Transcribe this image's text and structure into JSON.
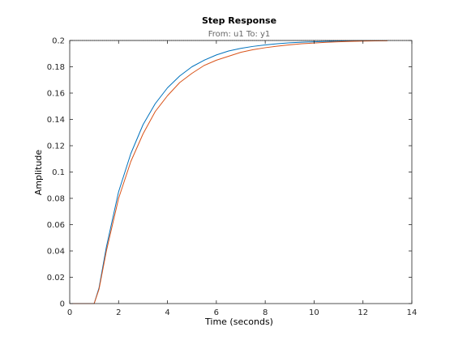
{
  "chart_data": {
    "type": "line",
    "title": "Step Response",
    "subtitle": "From: u1  To: y1",
    "xlabel": "Time (seconds)",
    "ylabel": "Amplitude",
    "xlim": [
      0,
      14
    ],
    "ylim": [
      0,
      0.2
    ],
    "xticks": [
      0,
      2,
      4,
      6,
      8,
      10,
      12,
      14
    ],
    "yticks": [
      0,
      0.02,
      0.04,
      0.06,
      0.08,
      0.1,
      0.12,
      0.14,
      0.16,
      0.18,
      0.2
    ],
    "xtick_labels": [
      "0",
      "2",
      "4",
      "6",
      "8",
      "10",
      "12",
      "14"
    ],
    "ytick_labels": [
      "0",
      "0.02",
      "0.04",
      "0.06",
      "0.08",
      "0.1",
      "0.12",
      "0.14",
      "0.16",
      "0.18",
      "0.2"
    ],
    "grid": false,
    "reference_line": 0.2,
    "series": [
      {
        "color": "#0072BD",
        "x": [
          0,
          1.0,
          1.2,
          1.5,
          2.0,
          2.5,
          3.0,
          3.5,
          4.0,
          4.5,
          5.0,
          5.5,
          6.0,
          6.5,
          7.0,
          7.5,
          8.0,
          8.5,
          9.0,
          9.5,
          10.0,
          10.5,
          11.0,
          11.5,
          12.0
        ],
        "y": [
          0,
          0,
          0.012,
          0.043,
          0.085,
          0.114,
          0.136,
          0.152,
          0.164,
          0.173,
          0.18,
          0.185,
          0.189,
          0.192,
          0.194,
          0.1955,
          0.1966,
          0.1975,
          0.1982,
          0.1987,
          0.199,
          0.1993,
          0.1995,
          0.1997,
          0.1998
        ]
      },
      {
        "color": "#D95319",
        "x": [
          0,
          1.0,
          1.2,
          1.5,
          2.0,
          2.5,
          3.0,
          3.5,
          4.0,
          4.5,
          5.0,
          5.5,
          6.0,
          6.5,
          7.0,
          7.5,
          8.0,
          8.5,
          9.0,
          9.5,
          10.0,
          10.5,
          11.0,
          11.5,
          12.0,
          12.5,
          13.0
        ],
        "y": [
          0,
          0,
          0.011,
          0.04,
          0.08,
          0.108,
          0.129,
          0.146,
          0.158,
          0.168,
          0.175,
          0.181,
          0.185,
          0.188,
          0.191,
          0.193,
          0.1945,
          0.1957,
          0.1967,
          0.1975,
          0.1981,
          0.1986,
          0.199,
          0.1993,
          0.1995,
          0.1997,
          0.1998
        ]
      }
    ]
  }
}
